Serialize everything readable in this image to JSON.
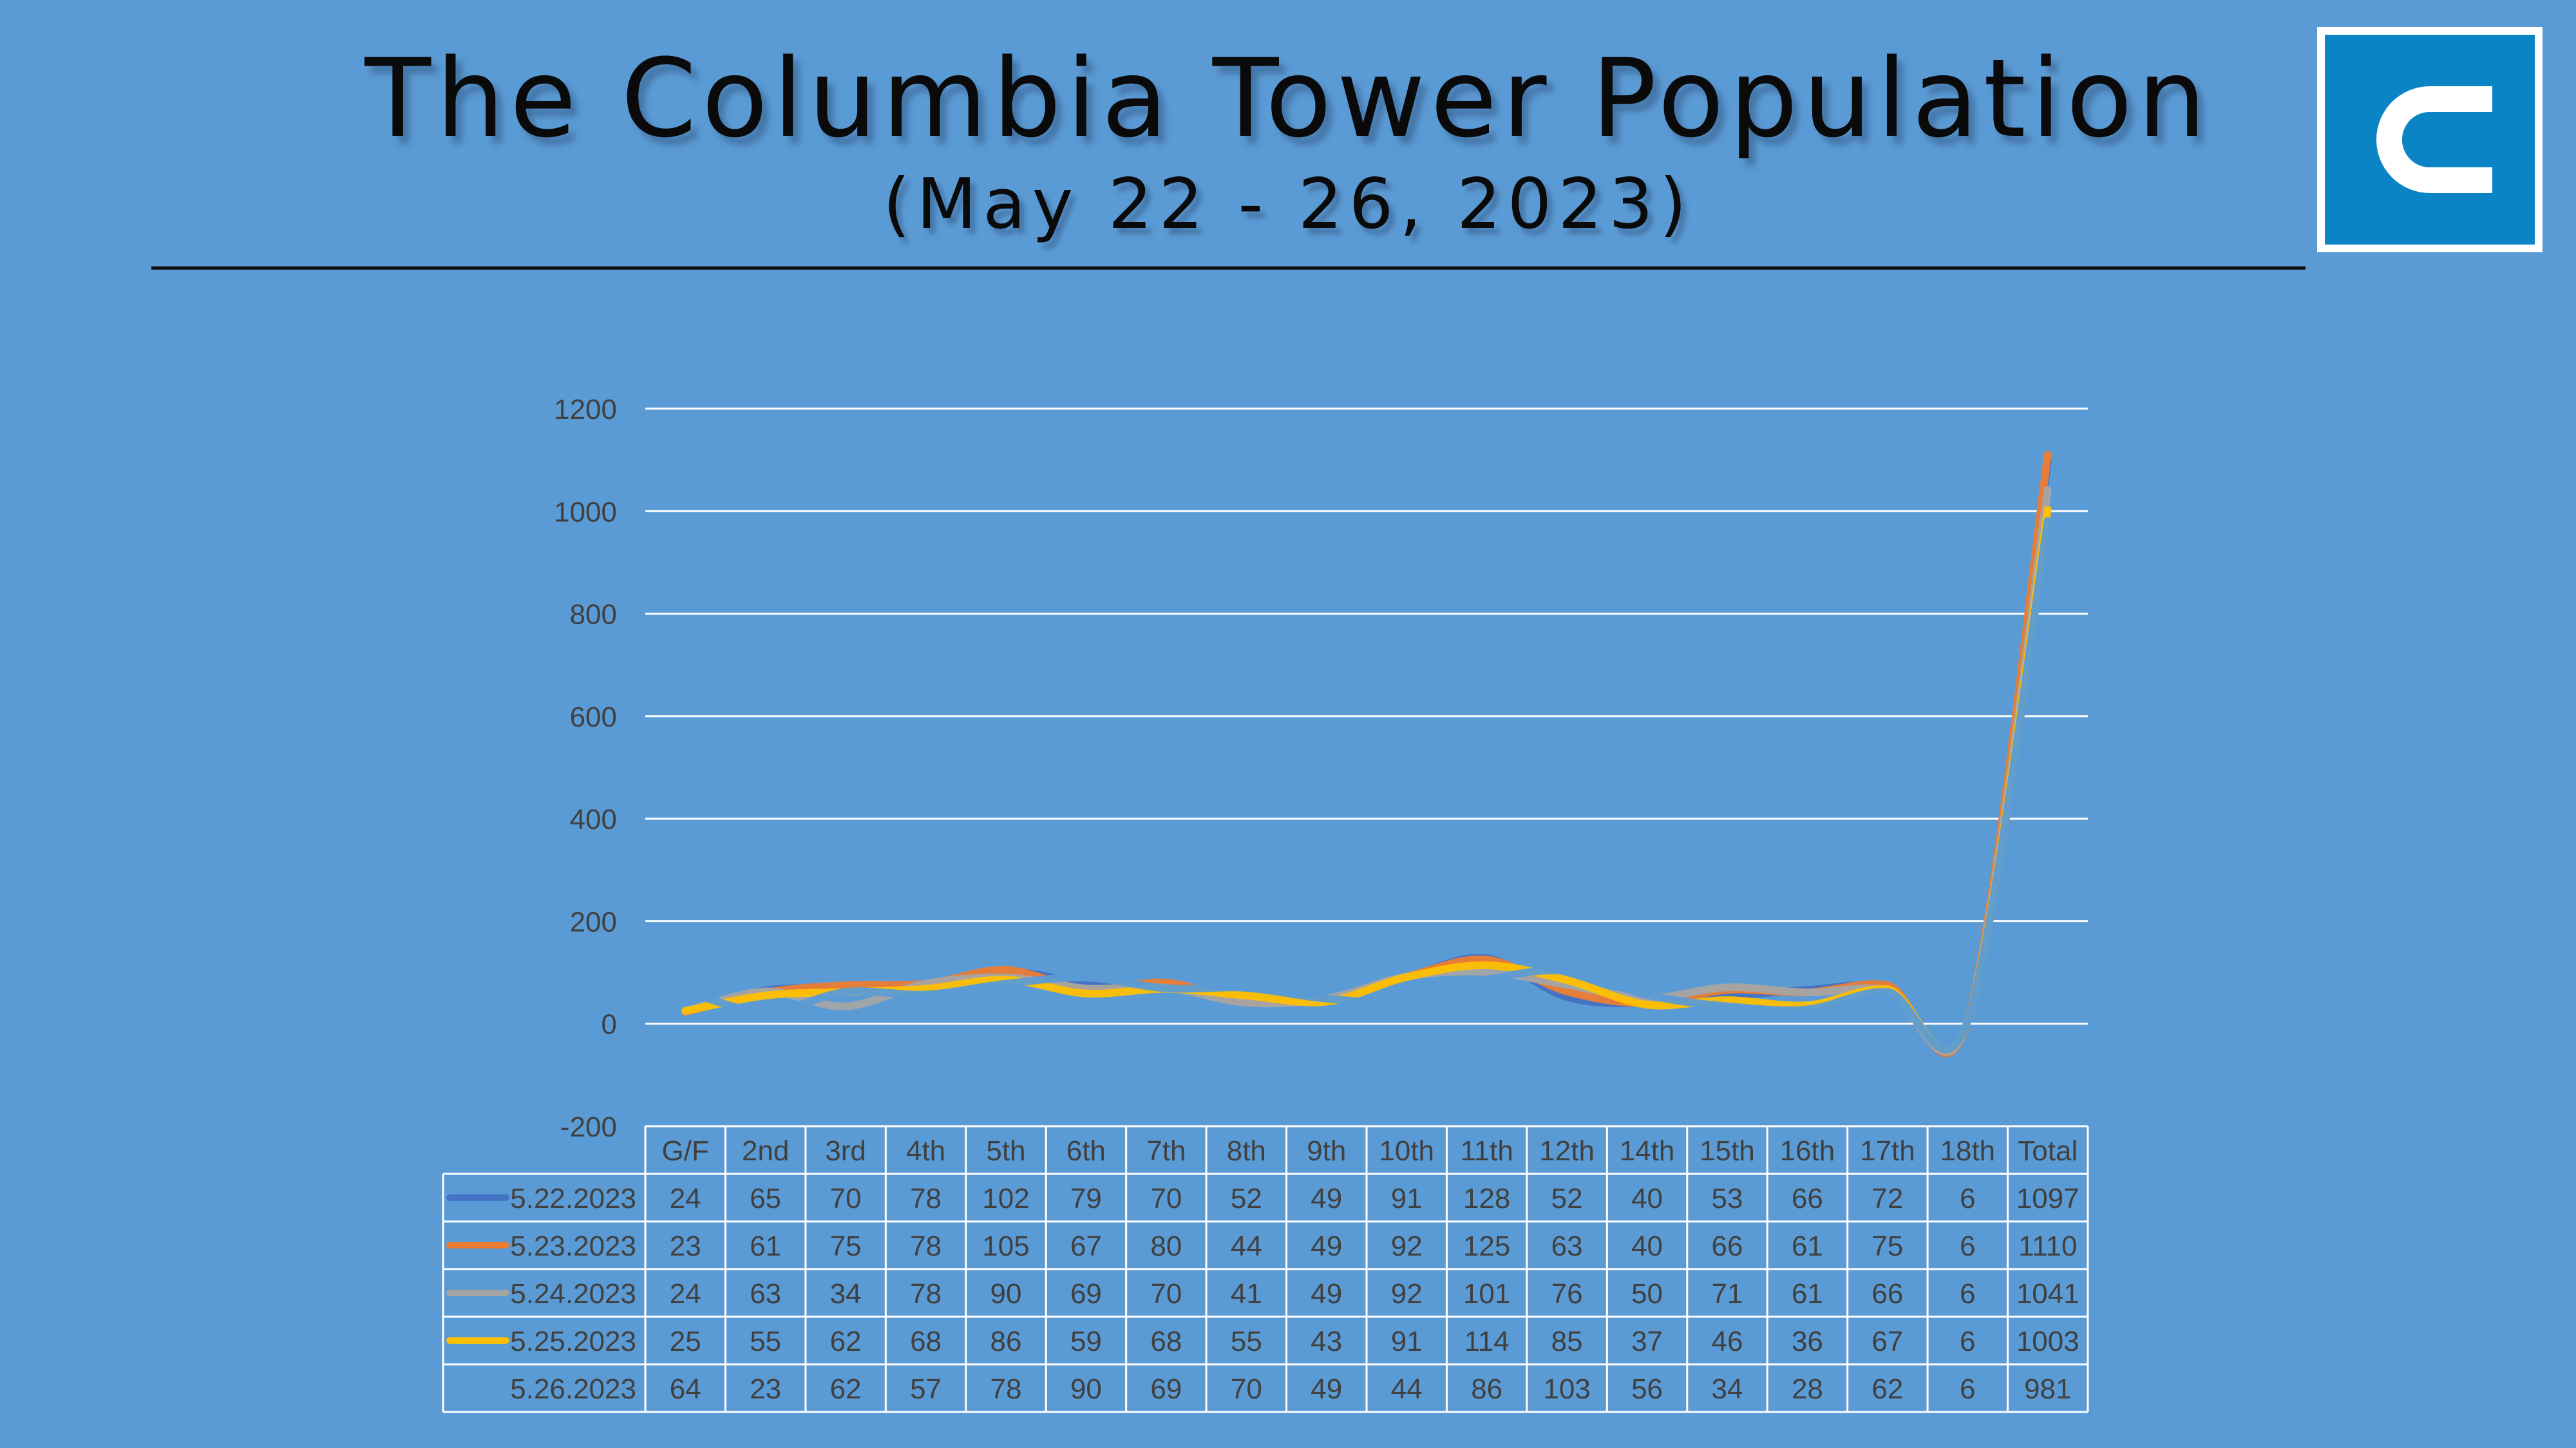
{
  "header": {
    "title": "The Columbia Tower Population",
    "subtitle": "(May 22 - 26, 2023)"
  },
  "logo": {
    "icon": "columbia-c-logo",
    "color": "#0b84c6"
  },
  "colors": {
    "background": "#5b9bd5",
    "text": "#404040",
    "gridline": "#ffffff"
  },
  "chart_data": {
    "type": "line",
    "smooth": true,
    "categories": [
      "G/F",
      "2nd",
      "3rd",
      "4th",
      "5th",
      "6th",
      "7th",
      "8th",
      "9th",
      "10th",
      "11th",
      "12th",
      "14th",
      "15th",
      "16th",
      "17th",
      "18th",
      "Total"
    ],
    "ylim": [
      -200,
      1200
    ],
    "yticks": [
      -200,
      0,
      200,
      400,
      600,
      800,
      1000,
      1200
    ],
    "grid": true,
    "legend": "data-table-below",
    "series": [
      {
        "name": "5.22.2023",
        "color": "#4472c4",
        "values": [
          24,
          65,
          70,
          78,
          102,
          79,
          70,
          52,
          49,
          91,
          128,
          52,
          40,
          53,
          66,
          72,
          6,
          1097
        ]
      },
      {
        "name": "5.23.2023",
        "color": "#ed7d31",
        "values": [
          23,
          61,
          75,
          78,
          105,
          67,
          80,
          44,
          49,
          92,
          125,
          63,
          40,
          66,
          61,
          75,
          6,
          1110
        ]
      },
      {
        "name": "5.24.2023",
        "color": "#a5a5a5",
        "values": [
          24,
          63,
          34,
          78,
          90,
          69,
          70,
          41,
          49,
          92,
          101,
          76,
          50,
          71,
          61,
          66,
          6,
          1041
        ]
      },
      {
        "name": "5.25.2023",
        "color": "#ffc000",
        "values": [
          25,
          55,
          62,
          68,
          86,
          59,
          68,
          55,
          43,
          91,
          114,
          85,
          37,
          46,
          36,
          67,
          6,
          1003
        ]
      },
      {
        "name": "5.26.2023",
        "color": "#5b9bd5",
        "values": [
          64,
          23,
          62,
          57,
          78,
          90,
          69,
          70,
          49,
          44,
          86,
          103,
          56,
          34,
          28,
          62,
          6,
          981
        ]
      }
    ]
  }
}
